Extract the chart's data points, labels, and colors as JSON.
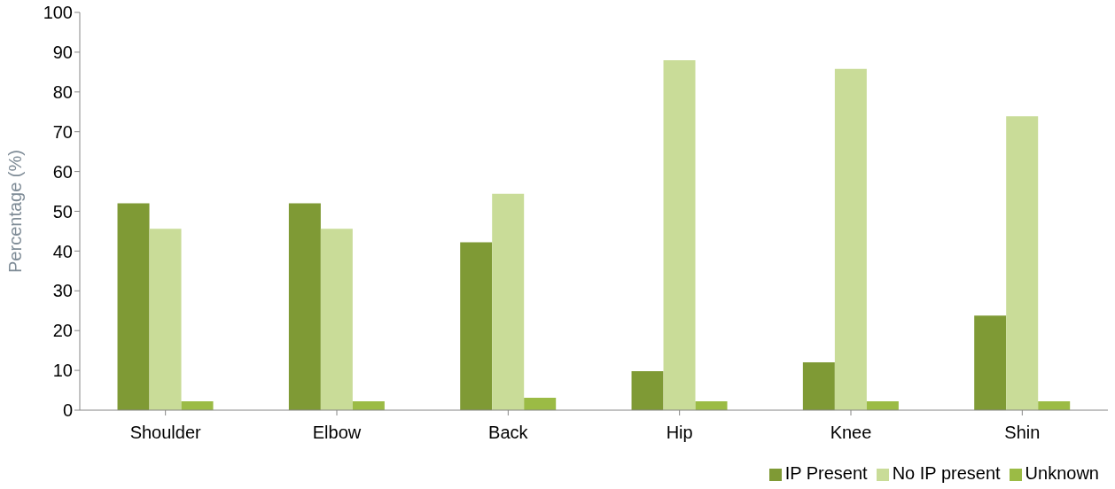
{
  "chart_data": {
    "type": "bar",
    "ylabel": "Percentage (%)",
    "categories": [
      "Shoulder",
      "Elbow",
      "Back",
      "Hip",
      "Knee",
      "Shin"
    ],
    "series": [
      {
        "name": "IP Present",
        "color": "#7f9a35",
        "values": [
          52,
          52,
          42.2,
          9.8,
          12,
          23.8
        ]
      },
      {
        "name": "No IP present",
        "color": "#c9dc98",
        "values": [
          45.6,
          45.6,
          54.4,
          88,
          85.8,
          73.9
        ]
      },
      {
        "name": "Unknown",
        "color": "#9bbb45",
        "values": [
          2.2,
          2.2,
          3.1,
          2.2,
          2.2,
          2.2
        ]
      }
    ],
    "ylim": [
      0,
      100
    ],
    "yticks": [
      0,
      10,
      20,
      30,
      40,
      50,
      60,
      70,
      80,
      90,
      100
    ],
    "grid": false,
    "legend": "bottom right"
  }
}
